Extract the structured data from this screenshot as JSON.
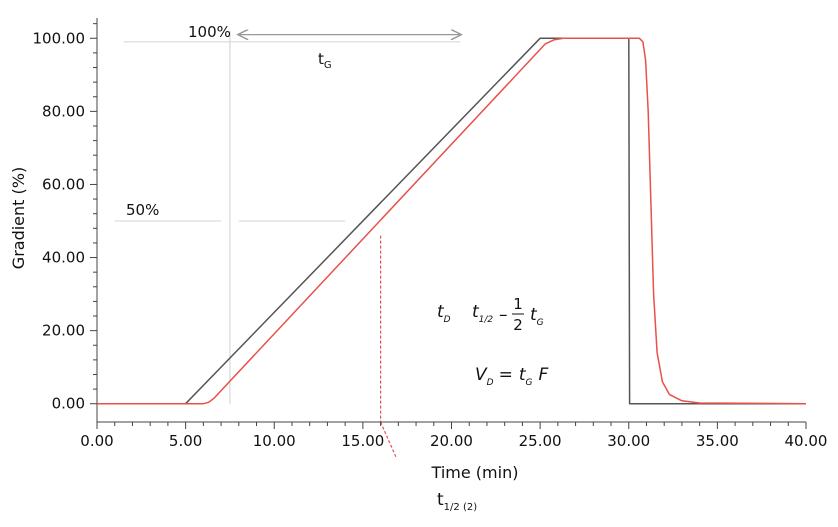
{
  "chart_data": {
    "type": "line",
    "xlabel": "Time (min)",
    "ylabel": "Gradient (%)",
    "xlim": [
      0,
      40
    ],
    "ylim": [
      -5,
      105
    ],
    "x_ticks": [
      0,
      5,
      10,
      15,
      20,
      25,
      30,
      35,
      40
    ],
    "x_tick_labels": [
      "0.00",
      "5.00",
      "10.00",
      "15.00",
      "20.00",
      "25.00",
      "30.00",
      "35.00",
      "40.00"
    ],
    "y_ticks": [
      0,
      20,
      40,
      60,
      80,
      100
    ],
    "y_tick_labels": [
      "0.00",
      "20.00",
      "40.00",
      "60.00",
      "80.00",
      "100.00"
    ],
    "grid": false,
    "series": [
      {
        "color": "#555555",
        "x": [
          0,
          5,
          25,
          30,
          30.05,
          40
        ],
        "y": [
          0,
          0,
          100,
          100,
          0,
          0
        ]
      },
      {
        "color": "#e8504a",
        "x": [
          0,
          6.0,
          6.3,
          6.6,
          25.3,
          25.8,
          26.3,
          30.6,
          30.8,
          30.95,
          31.1,
          31.25,
          31.4,
          31.6,
          31.9,
          32.3,
          33,
          34,
          40
        ],
        "y": [
          0,
          0,
          0.4,
          1.5,
          98.5,
          99.6,
          100,
          100,
          99,
          94,
          80,
          55,
          30,
          14,
          6,
          2.5,
          0.8,
          0.2,
          0
        ]
      }
    ],
    "annotations": {
      "label_100": "100%",
      "label_50": "50%",
      "tG_label": "t",
      "tG_sub": "G",
      "eq1_tD": "t",
      "eq1_tD_sub": "D",
      "eq1_t": "t",
      "eq1_t_sub": "1/2",
      "eq1_minus": "–",
      "eq1_num": "1",
      "eq1_den": "2",
      "eq1_tG": "t",
      "eq1_tG_sub": "G",
      "eq2_V": "V",
      "eq2_V_sub": "D",
      "eq2_eq": "=",
      "eq2_t": "t",
      "eq2_t_sub": "G",
      "eq2_F": "F",
      "t_half2": "t",
      "t_half2_sub": "1/2 (2)"
    },
    "ref_lines": {
      "v_line_x": 7.5,
      "h100_x": [
        1.5,
        20.5
      ],
      "h50_left_x": [
        1.0,
        7.0
      ],
      "h50_right_x": [
        8.0,
        14.0
      ],
      "arrow_x": [
        8.0,
        20.5
      ],
      "arrow_y": 101,
      "red_dash_x": 16.0,
      "red_dash_y": [
        -15,
        46
      ]
    }
  }
}
